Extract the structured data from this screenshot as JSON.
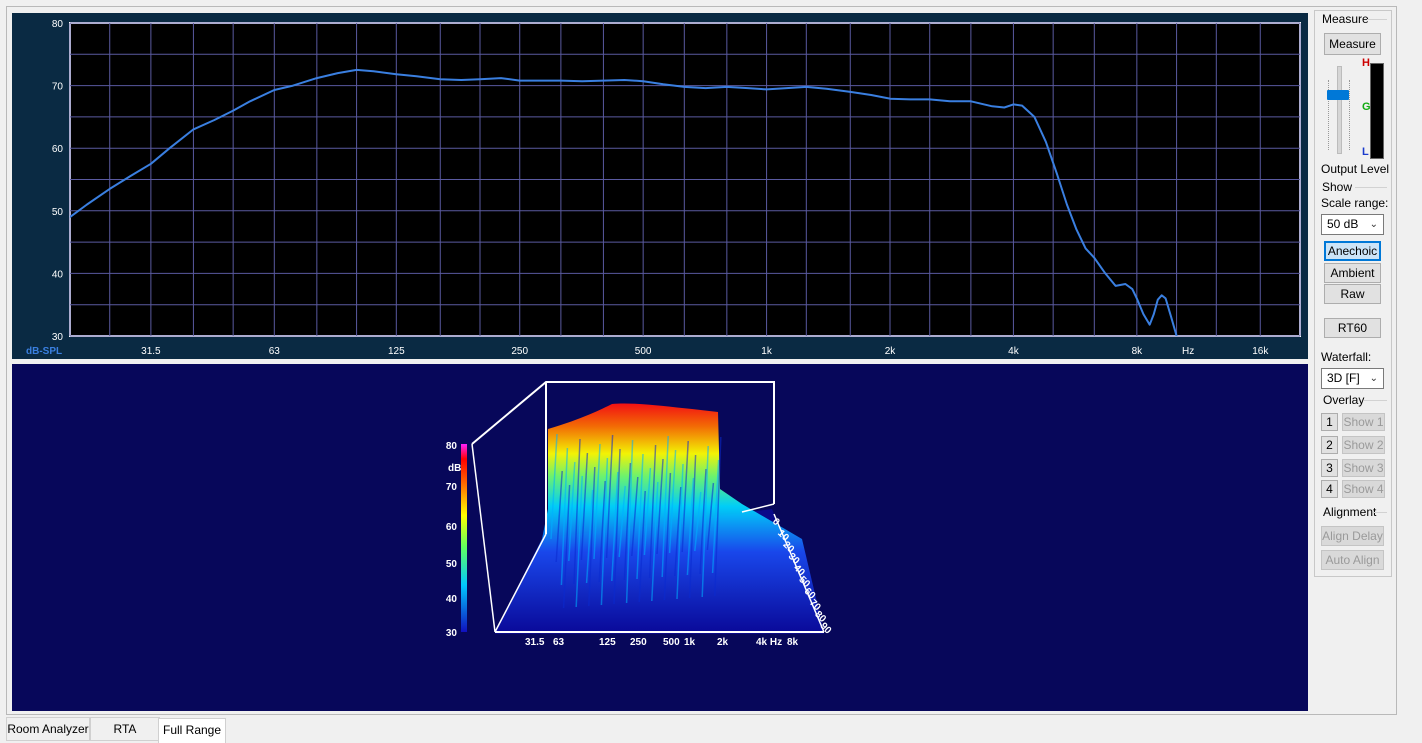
{
  "fr_chart": {
    "unit_label": "dB-SPL",
    "hz_label": "Hz",
    "x_tick_labels": [
      "31.5",
      "63",
      "125",
      "250",
      "500",
      "1k",
      "2k",
      "4k",
      "8k",
      "16k"
    ],
    "x_ticks_hz": [
      31.5,
      63,
      125,
      250,
      500,
      1000,
      2000,
      4000,
      8000,
      16000
    ],
    "y_tick_labels": [
      "80",
      "70",
      "60",
      "50",
      "40",
      "30"
    ],
    "y_ticks": [
      80,
      70,
      60,
      50,
      40,
      30
    ]
  },
  "chart_data": {
    "type": "line",
    "xscale": "log",
    "xlim": [
      20,
      20000
    ],
    "ylim": [
      30,
      80
    ],
    "ylabel": "dB-SPL",
    "grid": true,
    "color": "#3a7fe0",
    "x": [
      20,
      22,
      25,
      28,
      31.5,
      35,
      40,
      45,
      50,
      55,
      63,
      70,
      80,
      90,
      100,
      110,
      125,
      140,
      160,
      180,
      200,
      225,
      250,
      280,
      315,
      355,
      400,
      450,
      500,
      560,
      630,
      710,
      800,
      900,
      1000,
      1120,
      1250,
      1400,
      1600,
      1800,
      2000,
      2240,
      2500,
      2800,
      3150,
      3550,
      3800,
      4000,
      4200,
      4500,
      4800,
      5100,
      5400,
      5700,
      6000,
      6300,
      6700,
      7100,
      7500,
      7800,
      8000,
      8300,
      8600,
      8800,
      9000,
      9200,
      9400,
      9700,
      10000
    ],
    "y": [
      49,
      51,
      53.5,
      55.5,
      57.5,
      60,
      63,
      64.5,
      66,
      67.5,
      69.3,
      70,
      71.2,
      72,
      72.5,
      72.3,
      71.8,
      71.5,
      71,
      70.9,
      71,
      71.2,
      70.8,
      70.8,
      70.8,
      70.7,
      70.8,
      70.9,
      70.7,
      70.2,
      69.8,
      69.6,
      69.8,
      69.6,
      69.4,
      69.6,
      69.8,
      69.5,
      69.0,
      68.5,
      67.9,
      67.8,
      67.8,
      67.5,
      67.5,
      66.7,
      66.5,
      67,
      66.8,
      65,
      61,
      56,
      51,
      47,
      44,
      42.5,
      40,
      38,
      38.3,
      37.5,
      36,
      33.5,
      31.8,
      33.5,
      35.8,
      36.5,
      36,
      33,
      30
    ]
  },
  "waterfall": {
    "z_tick_labels": [
      "80",
      "70",
      "60",
      "50",
      "40",
      "30"
    ],
    "unit": "dB",
    "freq_labels": [
      "31.5",
      "63",
      "125",
      "250",
      "500",
      "1k",
      "2k",
      "4k Hz",
      "8k"
    ],
    "time_labels": [
      "0",
      "10",
      "20",
      "30",
      "40",
      "50",
      "60",
      "70",
      "80",
      "90"
    ]
  },
  "side": {
    "measure_group": "Measure",
    "measure_button": "Measure",
    "output_level": "Output Level",
    "meter_h": "H",
    "meter_g": "G",
    "meter_l": "L",
    "show_group": "Show",
    "scale_range_label": "Scale range:",
    "scale_range_value": "50 dB",
    "anechoic": "Anechoic",
    "ambient": "Ambient",
    "raw": "Raw",
    "rt60": "RT60",
    "waterfall_label": "Waterfall:",
    "waterfall_value": "3D [F]",
    "overlay_group": "Overlay",
    "overlay": [
      {
        "num": "1",
        "show": "Show 1"
      },
      {
        "num": "2",
        "show": "Show 2"
      },
      {
        "num": "3",
        "show": "Show 3"
      },
      {
        "num": "4",
        "show": "Show 4"
      }
    ],
    "alignment_group": "Alignment",
    "align_delay": "Align Delay",
    "auto_align": "Auto Align"
  },
  "tabs": [
    "Room Analyzer",
    "RTA",
    "Full Range"
  ],
  "colors": {
    "trace": "#3a7fe0",
    "grid": "#5a5aa0",
    "plot_bg": "#000000",
    "waterfall_bg": "#07075a",
    "accent": "#0078d7",
    "meter_h": "#cc0000",
    "meter_g": "#11aa11",
    "meter_l": "#1a3acc"
  }
}
